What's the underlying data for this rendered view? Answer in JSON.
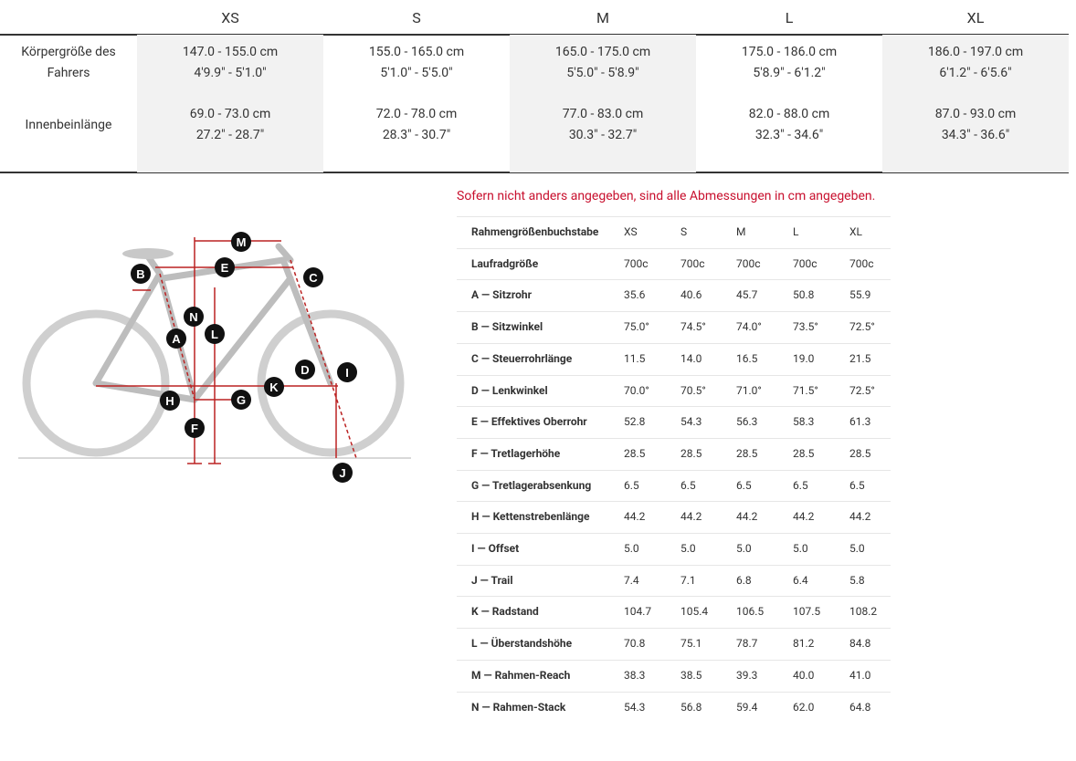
{
  "top_table": {
    "headers": [
      "XS",
      "S",
      "M",
      "L",
      "XL"
    ],
    "rows": [
      {
        "label": "Körpergröße des Fahrers",
        "values": [
          [
            "147.0 - 155.0 cm",
            "4'9.9\" - 5'1.0\""
          ],
          [
            "155.0 - 165.0 cm",
            "5'1.0\" - 5'5.0\""
          ],
          [
            "165.0 - 175.0 cm",
            "5'5.0\" - 5'8.9\""
          ],
          [
            "175.0 - 186.0 cm",
            "5'8.9\" - 6'1.2\""
          ],
          [
            "186.0 - 197.0 cm",
            "6'1.2\" - 6'5.6\""
          ]
        ]
      },
      {
        "label": "Innenbeinlänge",
        "values": [
          [
            "69.0 - 73.0 cm",
            "27.2\" - 28.7\""
          ],
          [
            "72.0 - 78.0 cm",
            "28.3\" - 30.7\""
          ],
          [
            "77.0 - 83.0 cm",
            "30.3\" - 32.7\""
          ],
          [
            "82.0 - 88.0 cm",
            "32.3\" - 34.6\""
          ],
          [
            "87.0 - 93.0 cm",
            "34.3\" - 36.6\""
          ]
        ]
      }
    ]
  },
  "note": "Sofern nicht anders angegeben, sind alle Abmessungen in cm angegeben.",
  "geometry_table": {
    "rows": [
      [
        "Rahmengrößenbuchstabe",
        "XS",
        "S",
        "M",
        "L",
        "XL"
      ],
      [
        "Laufradgröße",
        "700c",
        "700c",
        "700c",
        "700c",
        "700c"
      ],
      [
        "A — Sitzrohr",
        "35.6",
        "40.6",
        "45.7",
        "50.8",
        "55.9"
      ],
      [
        "B — Sitzwinkel",
        "75.0°",
        "74.5°",
        "74.0°",
        "73.5°",
        "72.5°"
      ],
      [
        "C — Steuerrohrlänge",
        "11.5",
        "14.0",
        "16.5",
        "19.0",
        "21.5"
      ],
      [
        "D — Lenkwinkel",
        "70.0°",
        "70.5°",
        "71.0°",
        "71.5°",
        "72.5°"
      ],
      [
        "E — Effektives Oberrohr",
        "52.8",
        "54.3",
        "56.3",
        "58.3",
        "61.3"
      ],
      [
        "F — Tretlagerhöhe",
        "28.5",
        "28.5",
        "28.5",
        "28.5",
        "28.5"
      ],
      [
        "G — Tretlagerabsenkung",
        "6.5",
        "6.5",
        "6.5",
        "6.5",
        "6.5"
      ],
      [
        "H — Kettenstrebenlänge",
        "44.2",
        "44.2",
        "44.2",
        "44.2",
        "44.2"
      ],
      [
        "I — Offset",
        "5.0",
        "5.0",
        "5.0",
        "5.0",
        "5.0"
      ],
      [
        "J — Trail",
        "7.4",
        "7.1",
        "6.8",
        "6.4",
        "5.8"
      ],
      [
        "K — Radstand",
        "104.7",
        "105.4",
        "106.5",
        "107.5",
        "108.2"
      ],
      [
        "L — Überstandshöhe",
        "70.8",
        "75.1",
        "78.7",
        "81.2",
        "84.8"
      ],
      [
        "M — Rahmen-Reach",
        "38.3",
        "38.5",
        "39.3",
        "40.0",
        "41.0"
      ],
      [
        "N — Rahmen-Stack",
        "54.3",
        "56.8",
        "59.4",
        "62.0",
        "64.8"
      ]
    ]
  },
  "diagram": {
    "markers": [
      "M",
      "E",
      "B",
      "C",
      "N",
      "L",
      "A",
      "D",
      "I",
      "K",
      "H",
      "G",
      "F",
      "J"
    ]
  }
}
